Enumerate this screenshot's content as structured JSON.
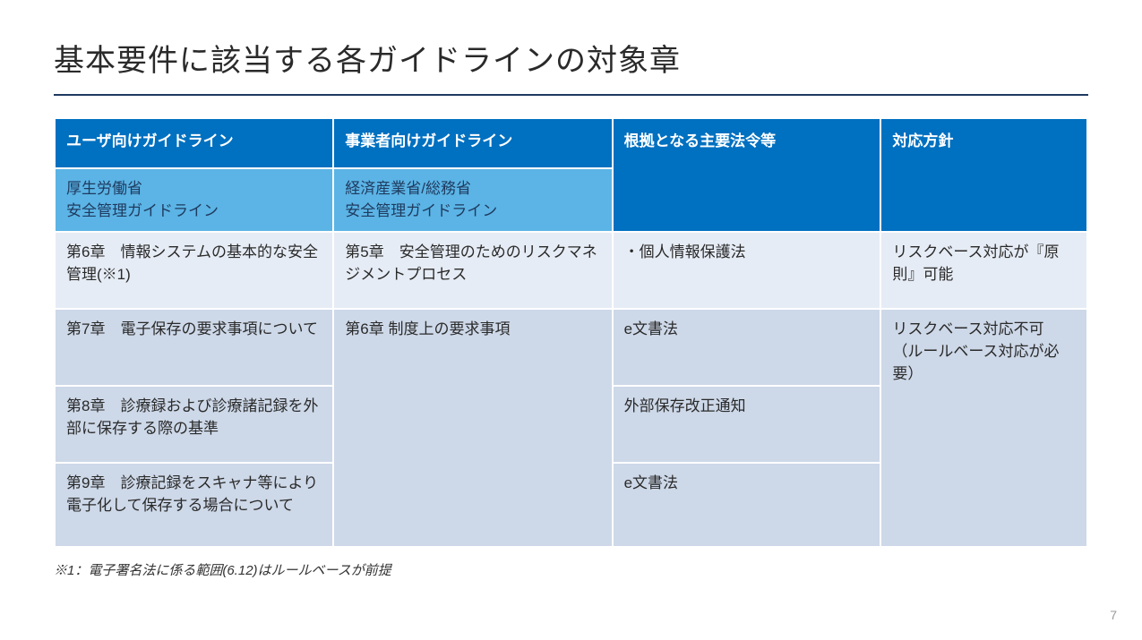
{
  "title": "基本要件に該当する各ガイドラインの対象章",
  "headers": {
    "col1": "ユーザ向けガイドライン",
    "col2": "事業者向けガイドライン",
    "col3": "根拠となる主要法令等",
    "col4": "対応方針"
  },
  "subheaders": {
    "col1": "厚生労働省\n安全管理ガイドライン",
    "col2": "経済産業省/総務省\n安全管理ガイドライン"
  },
  "rows": {
    "r1": {
      "col1": "第6章　情報システムの基本的な安全管理(※1)",
      "col2": "第5章　安全管理のためのリスクマネジメントプロセス",
      "col3": "・個人情報保護法",
      "col4": "リスクベース対応が『原則』可能"
    },
    "r2": {
      "col1": "第7章　電子保存の要求事項について",
      "col2": "第6章 制度上の要求事項",
      "col3": "e文書法",
      "col4": "リスクベース対応不可\n（ルールベース対応が必要）"
    },
    "r3": {
      "col1": "第8章　診療録および診療諸記録を外部に保存する際の基準",
      "col3": "外部保存改正通知"
    },
    "r4": {
      "col1": "第9章　診療記録をスキャナ等により電子化して保存する場合について",
      "col3": "e文書法"
    }
  },
  "footnote": "※1：電子署名法に係る範囲(6.12)はルールベースが前提",
  "page_number": "7",
  "colors": {
    "header_bg": "#0070c0",
    "subhead_bg": "#5bb4e5",
    "row_light": "#e6ecf5",
    "row_mid": "#cdd8e8",
    "underline": "#1f3a5f"
  }
}
